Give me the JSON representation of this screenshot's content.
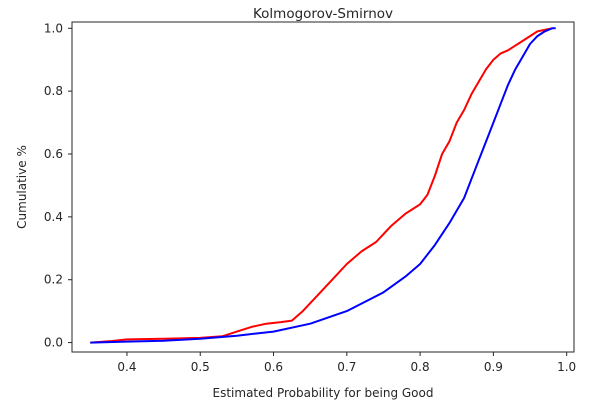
{
  "chart_data": {
    "type": "line",
    "title": "Kolmogorov-Smirnov",
    "xlabel": "Estimated Probability for being Good",
    "ylabel": "Cumulative %",
    "xlim": [
      0.325,
      1.01
    ],
    "ylim": [
      -0.03,
      1.02
    ],
    "xticks": [
      0.4,
      0.5,
      0.6,
      0.7,
      0.8,
      0.9,
      1.0
    ],
    "xtick_labels": [
      "0.4",
      "0.5",
      "0.6",
      "0.7",
      "0.8",
      "0.9",
      "1.0"
    ],
    "yticks": [
      0.0,
      0.2,
      0.4,
      0.6,
      0.8,
      1.0
    ],
    "ytick_labels": [
      "0.0",
      "0.2",
      "0.4",
      "0.6",
      "0.8",
      "1.0"
    ],
    "grid": false,
    "legend": "none",
    "series": [
      {
        "color": "#ff0000",
        "x": [
          0.35,
          0.38,
          0.4,
          0.45,
          0.5,
          0.53,
          0.55,
          0.57,
          0.59,
          0.61,
          0.625,
          0.64,
          0.66,
          0.68,
          0.7,
          0.72,
          0.74,
          0.76,
          0.78,
          0.79,
          0.8,
          0.81,
          0.82,
          0.83,
          0.84,
          0.85,
          0.86,
          0.87,
          0.88,
          0.89,
          0.9,
          0.91,
          0.92,
          0.94,
          0.96,
          0.98
        ],
        "y": [
          0.0,
          0.005,
          0.01,
          0.012,
          0.015,
          0.02,
          0.035,
          0.05,
          0.06,
          0.065,
          0.07,
          0.1,
          0.15,
          0.2,
          0.25,
          0.29,
          0.32,
          0.37,
          0.41,
          0.425,
          0.44,
          0.47,
          0.53,
          0.6,
          0.64,
          0.7,
          0.74,
          0.79,
          0.83,
          0.87,
          0.9,
          0.92,
          0.93,
          0.96,
          0.99,
          1.0
        ]
      },
      {
        "color": "#0000ff",
        "x": [
          0.35,
          0.4,
          0.45,
          0.5,
          0.55,
          0.6,
          0.65,
          0.7,
          0.75,
          0.78,
          0.8,
          0.82,
          0.84,
          0.86,
          0.87,
          0.88,
          0.89,
          0.9,
          0.91,
          0.92,
          0.93,
          0.94,
          0.95,
          0.96,
          0.97,
          0.98,
          0.985
        ],
        "y": [
          0.0,
          0.003,
          0.006,
          0.012,
          0.022,
          0.035,
          0.06,
          0.1,
          0.16,
          0.21,
          0.25,
          0.31,
          0.38,
          0.46,
          0.52,
          0.58,
          0.64,
          0.7,
          0.76,
          0.82,
          0.87,
          0.91,
          0.95,
          0.975,
          0.99,
          1.0,
          1.0
        ]
      }
    ]
  }
}
